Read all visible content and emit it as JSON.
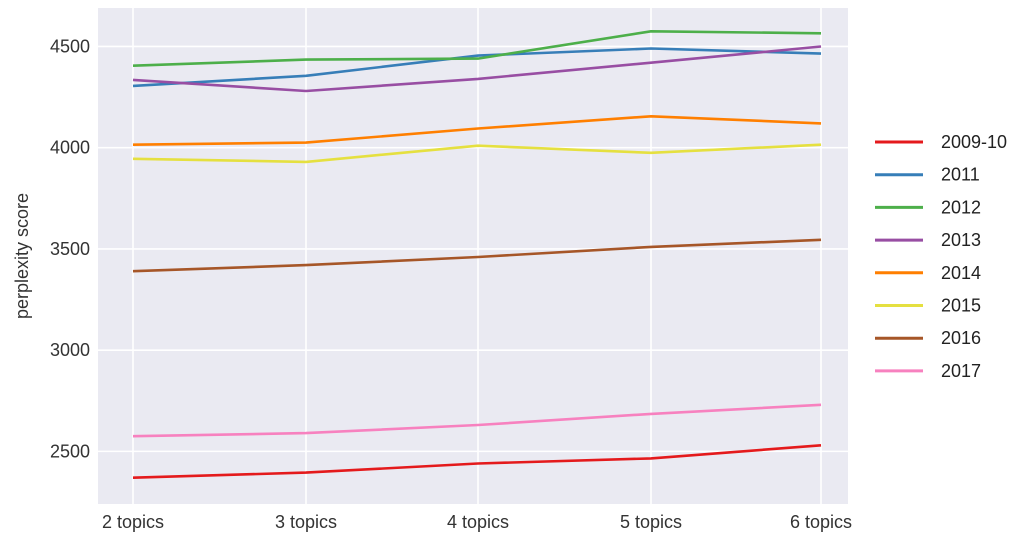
{
  "chart_data": {
    "type": "line",
    "categories": [
      "2 topics",
      "3 topics",
      "4 topics",
      "5 topics",
      "6 topics"
    ],
    "ylabel": "perplexity score",
    "xlabel": "",
    "ylim": [
      2240,
      4690
    ],
    "yticks": [
      2500,
      3000,
      3500,
      4000,
      4500
    ],
    "grid": true,
    "legend_position": "right",
    "background": "#eaeaf2",
    "gridline_color": "#ffffff",
    "series": [
      {
        "name": "2009-10",
        "color": "#e41a1c",
        "values": [
          2370,
          2395,
          2440,
          2465,
          2530
        ]
      },
      {
        "name": "2011",
        "color": "#377eb8",
        "values": [
          4305,
          4355,
          4455,
          4490,
          4465
        ]
      },
      {
        "name": "2012",
        "color": "#4daf4a",
        "values": [
          4405,
          4435,
          4440,
          4575,
          4565
        ]
      },
      {
        "name": "2013",
        "color": "#984ea3",
        "values": [
          4335,
          4280,
          4340,
          4420,
          4500
        ]
      },
      {
        "name": "2014",
        "color": "#ff7f00",
        "values": [
          4015,
          4025,
          4095,
          4155,
          4120
        ]
      },
      {
        "name": "2015",
        "color": "#e5e040",
        "values": [
          3945,
          3930,
          4010,
          3975,
          4015
        ]
      },
      {
        "name": "2016",
        "color": "#a65628",
        "values": [
          3390,
          3420,
          3460,
          3510,
          3545
        ]
      },
      {
        "name": "2017",
        "color": "#f781bf",
        "values": [
          2575,
          2590,
          2630,
          2685,
          2730
        ]
      }
    ]
  }
}
